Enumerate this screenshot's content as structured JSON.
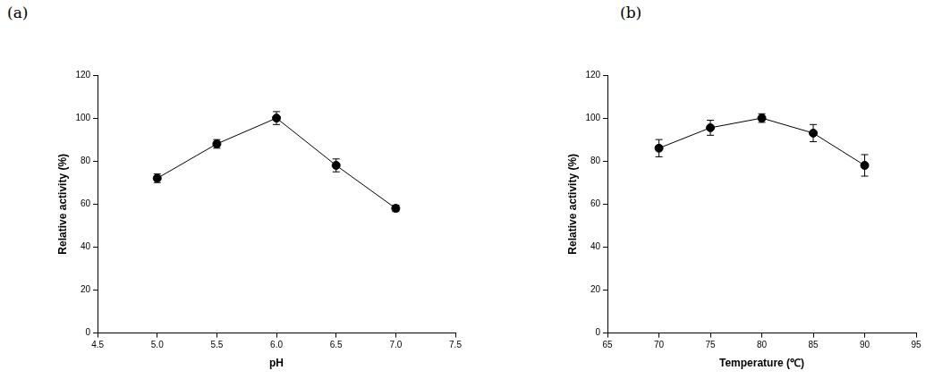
{
  "chart_data": [
    {
      "type": "line",
      "panel": "(a)",
      "x_label": "pH",
      "y_label": "Relative activity (%)",
      "x": [
        5.0,
        5.5,
        6.0,
        6.5,
        7.0
      ],
      "series": [
        {
          "name": "pH",
          "color": "#000000",
          "marker": "circle",
          "line_style": "solid",
          "values": [
            72,
            88,
            100,
            78,
            58
          ],
          "errors": [
            2,
            2,
            3,
            3,
            1.5
          ]
        }
      ],
      "xlim": [
        4.5,
        7.5
      ],
      "xticks": [
        4.5,
        {
          "value": 5,
          "label": "5.0"
        },
        5.5,
        {
          "value": 6,
          "label": "6.0"
        },
        6.5,
        {
          "value": 7,
          "label": "7.0"
        },
        7.5
      ],
      "ylim": [
        0,
        120
      ],
      "yticks": [
        0,
        20,
        40,
        60,
        80,
        100,
        120
      ],
      "grid": false
    },
    {
      "type": "line",
      "panel": "(b)",
      "x_label": "Temperature (℃)",
      "y_label": "Relative activity (%)",
      "x": [
        70,
        75,
        80,
        85,
        90
      ],
      "series": [
        {
          "name": "Temperature",
          "color": "#000000",
          "marker": "circle",
          "line_style": "solid",
          "values": [
            86,
            95.5,
            100,
            93,
            78
          ],
          "errors": [
            4,
            3.5,
            2,
            4,
            5
          ]
        }
      ],
      "xlim": [
        65,
        95
      ],
      "xticks": [
        65,
        70,
        75,
        80,
        85,
        90,
        95
      ],
      "ylim": [
        0,
        120
      ],
      "yticks": [
        0,
        20,
        40,
        60,
        80,
        100,
        120
      ],
      "grid": false
    }
  ]
}
